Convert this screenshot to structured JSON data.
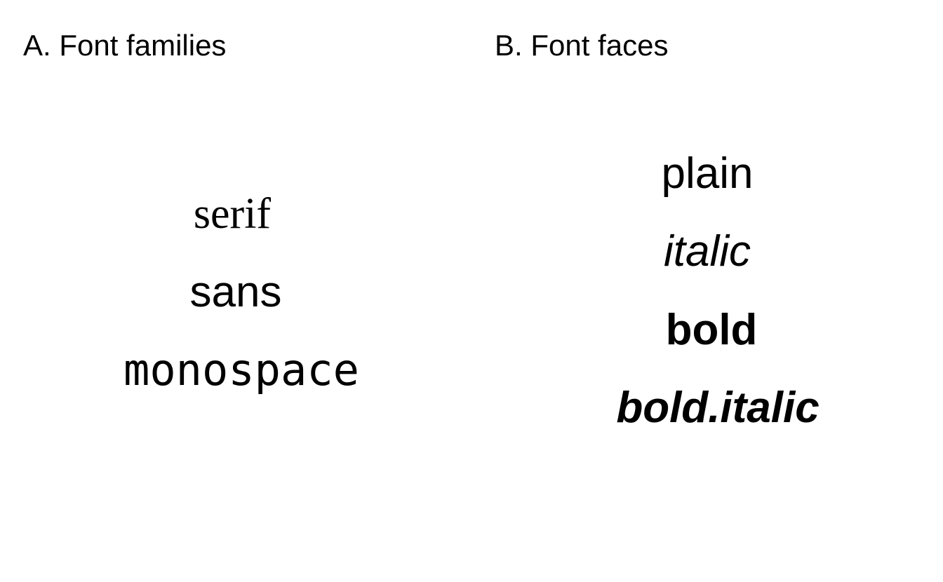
{
  "panel_a": {
    "title": "A. Font families",
    "samples": [
      "serif",
      "sans",
      "monospace"
    ]
  },
  "panel_b": {
    "title": "B. Font faces",
    "samples": [
      "plain",
      "italic",
      "bold",
      "bold.italic"
    ]
  },
  "colors": {
    "background": "#ffffff",
    "text": "#000000"
  }
}
